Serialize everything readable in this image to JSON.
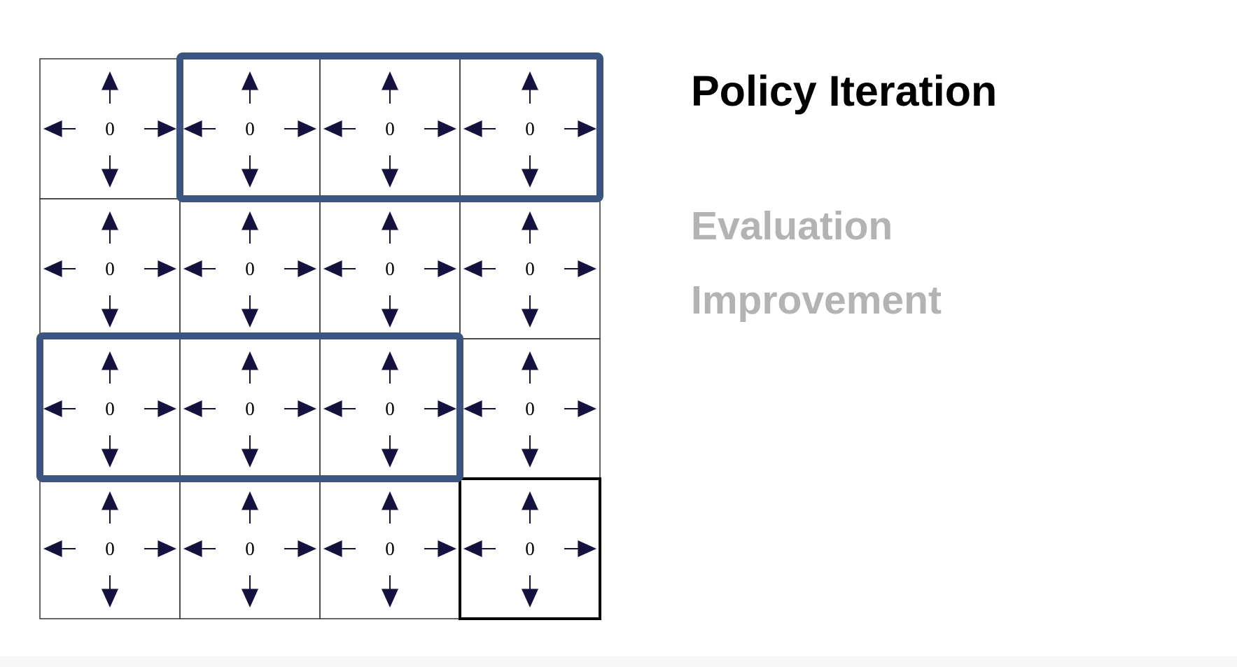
{
  "title": "Policy Iteration",
  "steps": [
    {
      "label": "Evaluation",
      "active": false
    },
    {
      "label": "Improvement",
      "active": false
    }
  ],
  "grid": {
    "rows": 4,
    "cols": 4,
    "values": [
      [
        "0",
        "0",
        "0",
        "0"
      ],
      [
        "0",
        "0",
        "0",
        "0"
      ],
      [
        "0",
        "0",
        "0",
        "0"
      ],
      [
        "0",
        "0",
        "0",
        "0"
      ]
    ],
    "actions": [
      "up",
      "down",
      "left",
      "right"
    ],
    "highlight_groups": [
      {
        "row": 0,
        "col_start": 1,
        "col_end": 3
      },
      {
        "row": 2,
        "col_start": 0,
        "col_end": 2
      }
    ],
    "terminal_cell": {
      "row": 3,
      "col": 3
    }
  },
  "colors": {
    "highlight": "#3b5580",
    "arrow": "#16123f",
    "gridline": "#333333",
    "terminal_border": "#000000",
    "inactive_text": "#b3b3b3",
    "title_text": "#000000"
  }
}
